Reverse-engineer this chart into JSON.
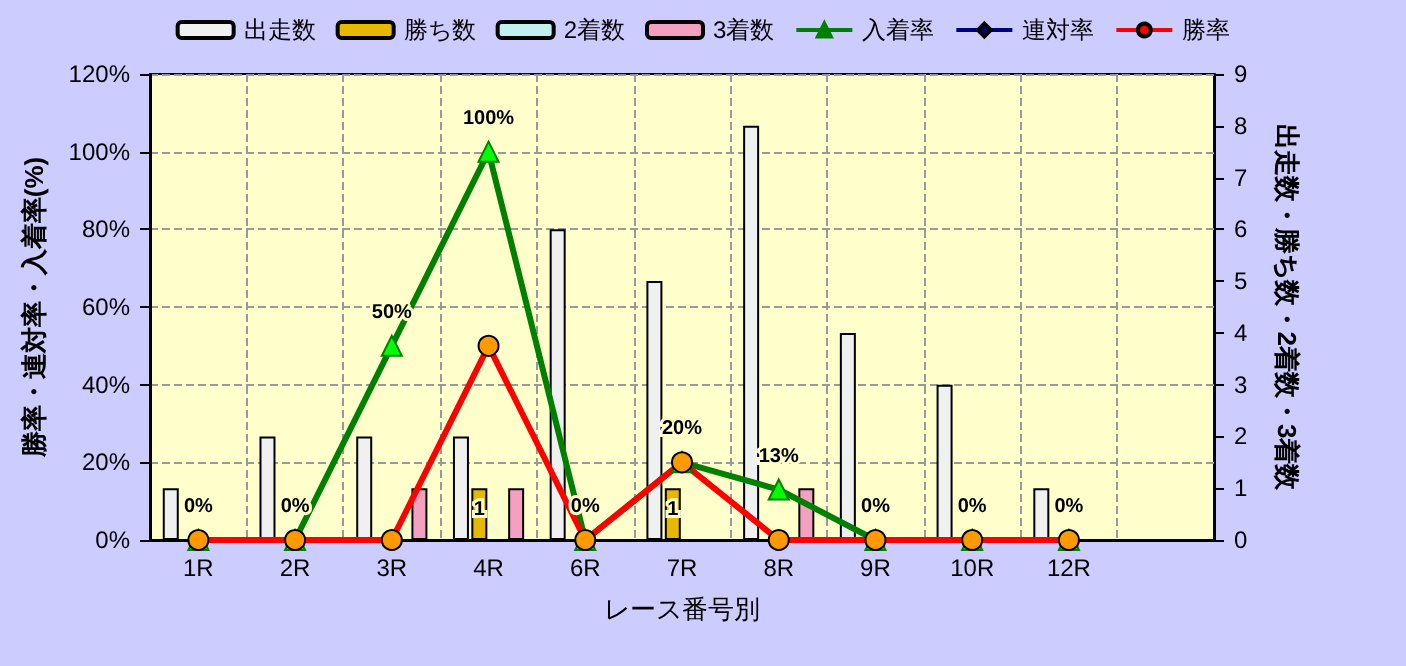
{
  "chart_data": {
    "type": "bar",
    "xlabel": "レース番号別",
    "ylabel": "勝率・連対率・入着率(%)",
    "y2label": "出走数・勝ち数・2着数・3着数",
    "categories": [
      "1R",
      "2R",
      "3R",
      "4R",
      "6R",
      "7R",
      "8R",
      "9R",
      "10R",
      "12R",
      null
    ],
    "series": [
      {
        "name": "出走数",
        "type": "bar",
        "axis": "y2",
        "color": "#f0f0f0",
        "values": [
          1,
          2,
          2,
          2,
          6,
          5,
          8,
          4,
          3,
          1,
          null
        ]
      },
      {
        "name": "勝ち数",
        "type": "bar",
        "axis": "y2",
        "color": "#e6b800",
        "values": [
          0,
          0,
          0,
          1,
          0,
          1,
          0,
          0,
          0,
          0,
          null
        ],
        "value_labels": [
          null,
          null,
          null,
          "1",
          null,
          "1",
          null,
          null,
          null,
          null,
          null
        ]
      },
      {
        "name": "2着数",
        "type": "bar",
        "axis": "y2",
        "color": "#c0f0f0",
        "values": [
          0,
          0,
          0,
          0,
          0,
          0,
          0,
          0,
          0,
          0,
          null
        ]
      },
      {
        "name": "3着数",
        "type": "bar",
        "axis": "y2",
        "color": "#f4a0c0",
        "values": [
          0,
          0,
          1,
          1,
          0,
          0,
          1,
          0,
          0,
          0,
          null
        ]
      },
      {
        "name": "入着率",
        "type": "line",
        "color": "#008000",
        "marker": "triangle",
        "values": [
          0,
          0,
          50,
          100,
          0,
          20,
          13,
          0,
          0,
          0,
          null
        ],
        "value_labels": [
          "0%",
          "0%",
          "50%",
          "100%",
          "0%",
          "20%",
          "13%",
          "0%",
          "0%",
          "0%",
          null
        ]
      },
      {
        "name": "連対率",
        "type": "line",
        "color": "#000080",
        "marker": "diamond",
        "values": [
          null,
          null,
          null,
          null,
          null,
          null,
          null,
          null,
          null,
          null,
          null
        ]
      },
      {
        "name": "勝率",
        "type": "line",
        "color": "#ff0000",
        "marker": "circle",
        "values": [
          0,
          0,
          0,
          50,
          0,
          20,
          0,
          0,
          0,
          0,
          null
        ]
      }
    ],
    "ylim": [
      0,
      120
    ],
    "yticks": [
      {
        "value": 0,
        "label": "0%"
      },
      {
        "value": 20,
        "label": "20%"
      },
      {
        "value": 40,
        "label": "40%"
      },
      {
        "value": 60,
        "label": "60%"
      },
      {
        "value": 80,
        "label": "80%"
      },
      {
        "value": 100,
        "label": "100%"
      },
      {
        "value": 120,
        "label": "120%"
      }
    ],
    "y2lim": [
      0,
      9
    ],
    "y2ticks": [
      0,
      1,
      2,
      3,
      4,
      5,
      6,
      7,
      8,
      9
    ],
    "grid": true,
    "legend": "top",
    "line_style": "solid"
  }
}
